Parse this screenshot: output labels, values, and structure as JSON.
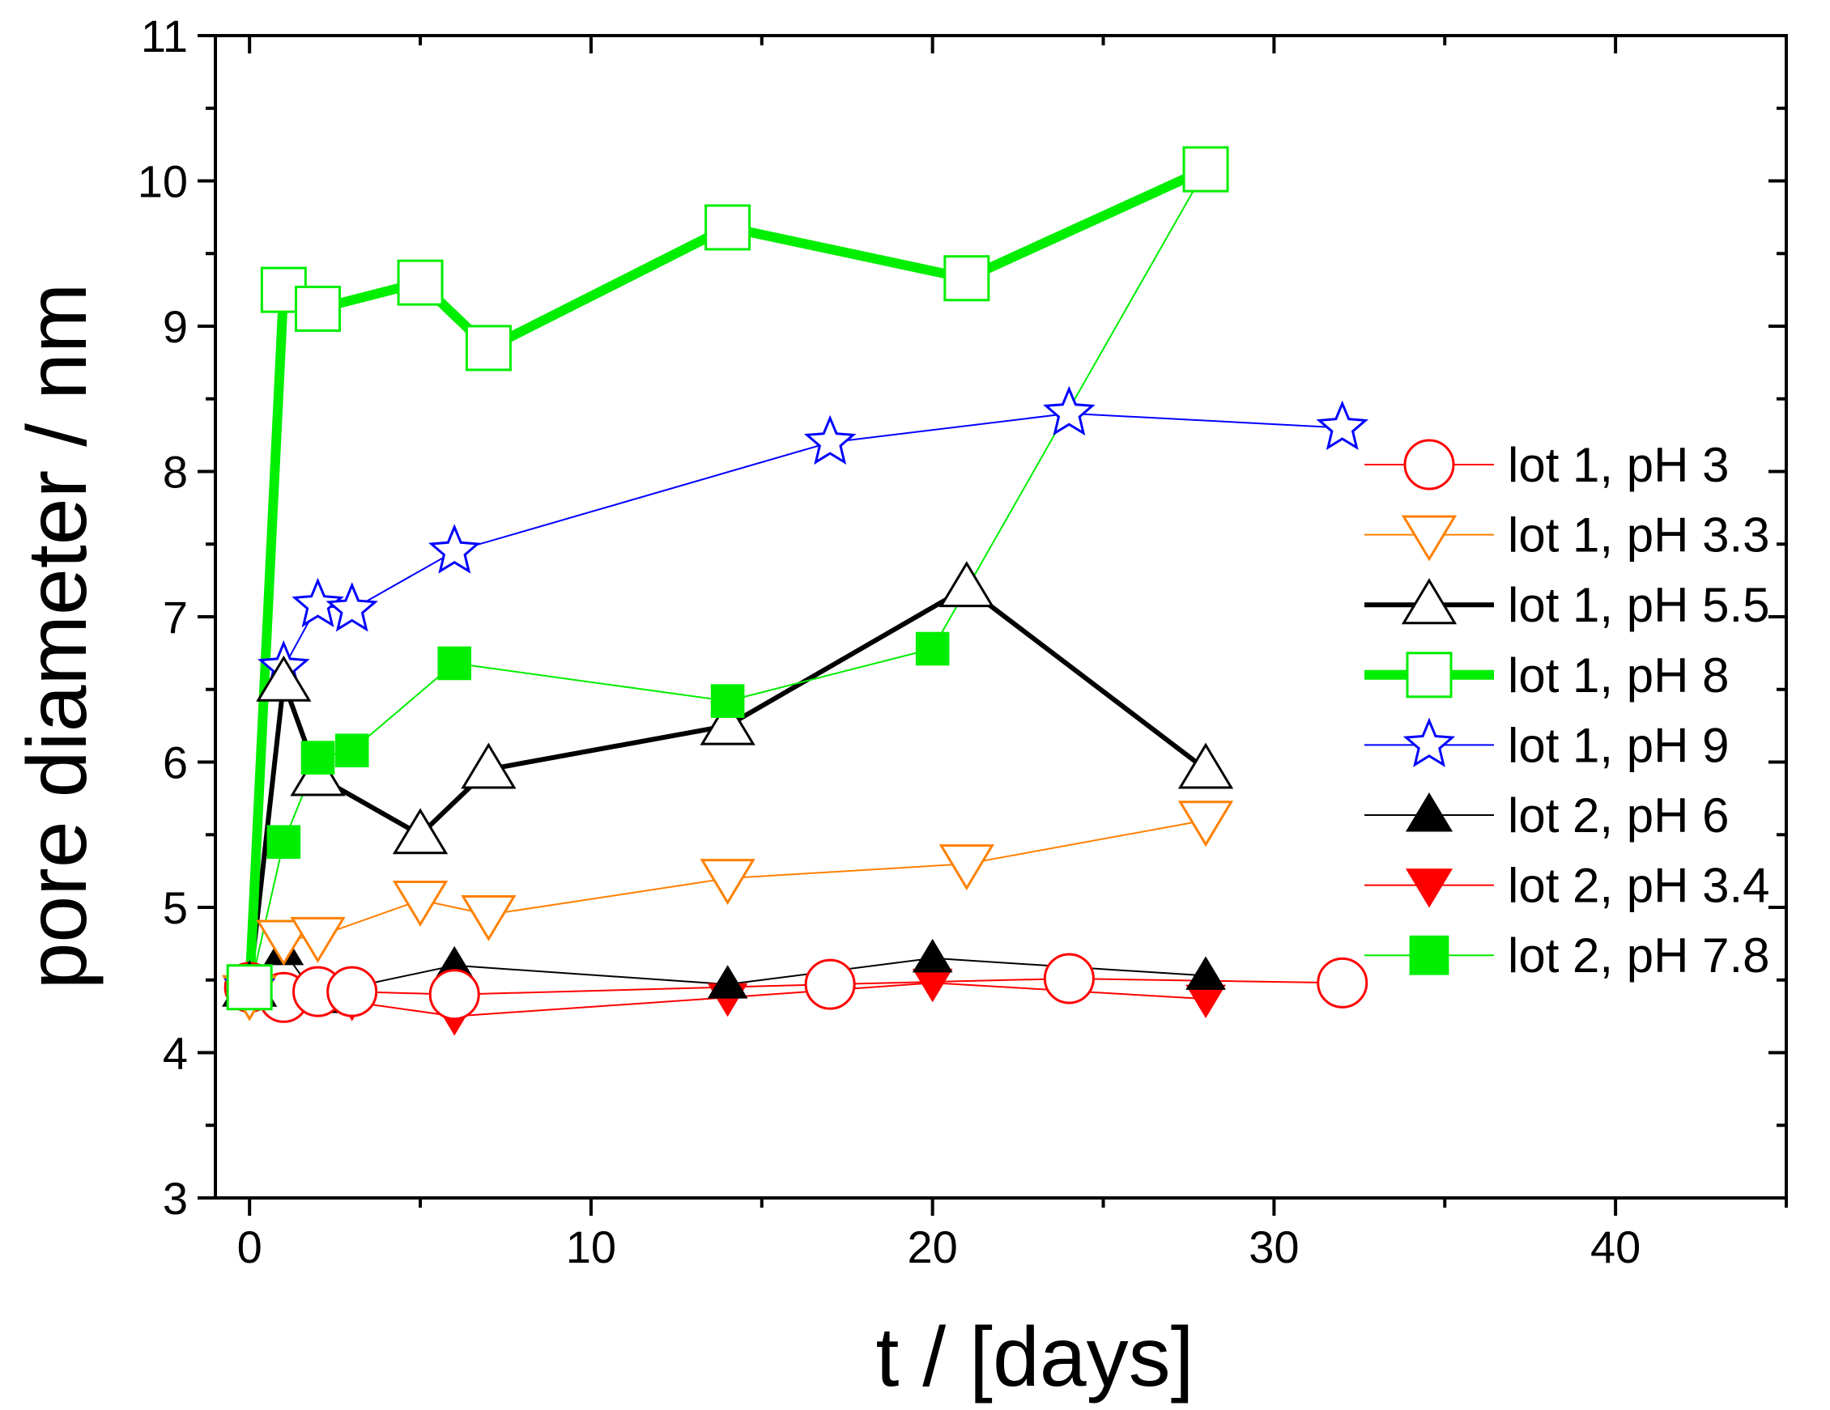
{
  "chart_data": {
    "type": "line",
    "title": "",
    "xlabel": "t / [days]",
    "ylabel": "pore diameter / nm",
    "xlim": [
      -1,
      45
    ],
    "ylim": [
      3,
      11
    ],
    "x_ticks": [
      0,
      10,
      20,
      30,
      40
    ],
    "x_tick_labels": [
      "0",
      "10",
      "20",
      "30",
      "40"
    ],
    "y_ticks": [
      3,
      4,
      5,
      6,
      7,
      8,
      9,
      10,
      11
    ],
    "y_tick_labels": [
      "3",
      "4",
      "5",
      "6",
      "7",
      "8",
      "9",
      "10",
      "11"
    ],
    "grid": false,
    "legend_position": "right",
    "series": [
      {
        "name": "lot 1, pH 3",
        "color": "#ff0000",
        "marker": "circle",
        "filled": false,
        "line_width": "thin",
        "x": [
          0,
          1,
          2,
          3,
          6,
          17,
          24,
          32
        ],
        "y": [
          4.45,
          4.38,
          4.42,
          4.42,
          4.4,
          4.47,
          4.51,
          4.48
        ]
      },
      {
        "name": "lot 1, pH 3.3",
        "color": "#ff8000",
        "marker": "triangle-down",
        "filled": false,
        "line_width": "thin",
        "x": [
          0,
          1,
          2,
          5,
          7,
          14,
          21,
          28
        ],
        "y": [
          4.4,
          4.78,
          4.8,
          5.05,
          4.95,
          5.2,
          5.3,
          5.6
        ]
      },
      {
        "name": "lot 1, pH 5.5",
        "color": "#000000",
        "marker": "triangle-up",
        "filled": false,
        "line_width": "thick",
        "x": [
          0,
          1,
          2,
          5,
          7,
          14,
          21,
          28
        ],
        "y": [
          4.45,
          6.55,
          5.9,
          5.5,
          5.95,
          6.25,
          7.2,
          5.95
        ]
      },
      {
        "name": "lot 1, pH 8",
        "color": "#00ee00",
        "marker": "square",
        "filled": false,
        "line_width": "extra-thick",
        "x": [
          0,
          1,
          2,
          5,
          7,
          14,
          21,
          28
        ],
        "y": [
          4.45,
          9.25,
          9.12,
          9.3,
          8.85,
          9.68,
          9.33,
          10.08
        ]
      },
      {
        "name": "lot 1, pH 9",
        "color": "#0000ff",
        "marker": "star",
        "filled": false,
        "line_width": "thin",
        "x": [
          0,
          1,
          2,
          3,
          6,
          17,
          24,
          32
        ],
        "y": [
          4.45,
          6.65,
          7.08,
          7.05,
          7.45,
          8.2,
          8.4,
          8.3
        ]
      },
      {
        "name": "lot 2, pH 6",
        "color": "#000000",
        "marker": "triangle-up",
        "filled": true,
        "line_width": "thin",
        "x": [
          0,
          1,
          2,
          3,
          6,
          14,
          20,
          28
        ],
        "y": [
          4.45,
          4.7,
          4.37,
          4.45,
          4.6,
          4.47,
          4.65,
          4.53
        ]
      },
      {
        "name": "lot 2, pH 3.4",
        "color": "#ff0000",
        "marker": "triangle-down",
        "filled": true,
        "line_width": "thin",
        "x": [
          0,
          1,
          2,
          3,
          6,
          14,
          20,
          28
        ],
        "y": [
          4.42,
          4.38,
          4.38,
          4.35,
          4.25,
          4.38,
          4.48,
          4.37
        ]
      },
      {
        "name": "lot 2, pH 7.8",
        "color": "#00ee00",
        "marker": "square",
        "filled": true,
        "line_width": "thin",
        "x": [
          0,
          1,
          2,
          3,
          6,
          14,
          20,
          28
        ],
        "y": [
          4.42,
          5.45,
          6.03,
          6.08,
          6.68,
          6.42,
          6.78,
          10.08
        ]
      }
    ]
  }
}
